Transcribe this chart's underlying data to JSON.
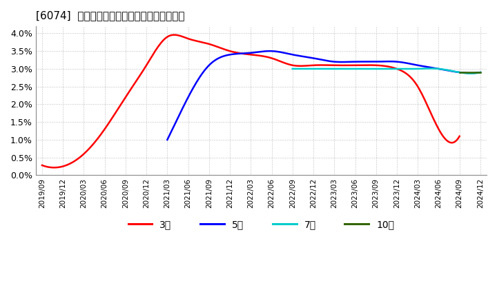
{
  "title": "[6074]  当期純利益マージンの標準偏差の推移",
  "title_fontsize": 11,
  "background_color": "#ffffff",
  "plot_background_color": "#ffffff",
  "grid_color": "#bbbbbb",
  "ylim": [
    0.0,
    0.042
  ],
  "yticks": [
    0.0,
    0.005,
    0.01,
    0.015,
    0.02,
    0.025,
    0.03,
    0.035,
    0.04
  ],
  "ytick_labels": [
    "0.0%",
    "0.5%",
    "1.0%",
    "1.5%",
    "2.0%",
    "2.5%",
    "3.0%",
    "3.5%",
    "4.0%"
  ],
  "series": [
    {
      "label": "3年",
      "color": "#ff0000",
      "linewidth": 1.8,
      "values": [
        0.0028,
        0.0025,
        0.006,
        0.013,
        0.022,
        0.031,
        0.039,
        0.0385,
        0.037,
        0.035,
        0.034,
        0.033,
        0.031,
        0.031,
        0.031,
        0.031,
        0.031,
        0.03,
        0.025,
        0.013,
        0.011,
        null
      ]
    },
    {
      "label": "5年",
      "color": "#0000ff",
      "linewidth": 1.8,
      "values": [
        null,
        null,
        null,
        null,
        null,
        null,
        0.01,
        0.022,
        0.031,
        0.034,
        0.0345,
        0.035,
        0.034,
        0.033,
        0.032,
        0.032,
        0.032,
        0.032,
        0.031,
        0.03,
        0.029,
        0.029
      ]
    },
    {
      "label": "7年",
      "color": "#00cccc",
      "linewidth": 1.8,
      "values": [
        null,
        null,
        null,
        null,
        null,
        null,
        null,
        null,
        null,
        null,
        null,
        null,
        0.03,
        0.03,
        0.03,
        0.03,
        0.03,
        0.03,
        0.03,
        0.03,
        0.029,
        0.029
      ]
    },
    {
      "label": "10年",
      "color": "#336600",
      "linewidth": 1.8,
      "values": [
        null,
        null,
        null,
        null,
        null,
        null,
        null,
        null,
        null,
        null,
        null,
        null,
        null,
        null,
        null,
        null,
        null,
        null,
        null,
        null,
        0.029,
        0.029
      ]
    }
  ],
  "legend_labels": [
    "3年",
    "5年",
    "7年",
    "10年"
  ],
  "legend_colors": [
    "#ff0000",
    "#0000ff",
    "#00cccc",
    "#336600"
  ],
  "xtick_labels": [
    "2019/09",
    "2019/12",
    "2020/03",
    "2020/06",
    "2020/09",
    "2020/12",
    "2021/03",
    "2021/06",
    "2021/09",
    "2021/12",
    "2022/03",
    "2022/06",
    "2022/09",
    "2022/12",
    "2023/03",
    "2023/06",
    "2023/09",
    "2023/12",
    "2024/03",
    "2024/06",
    "2024/09",
    "2024/12"
  ]
}
